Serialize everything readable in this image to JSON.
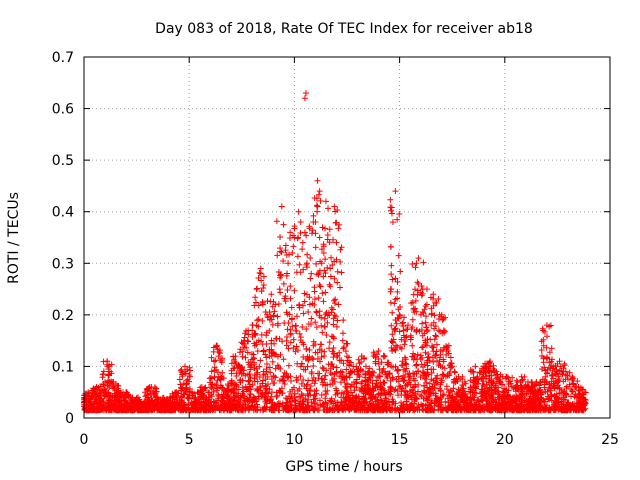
{
  "chart_data": {
    "type": "scatter",
    "title": "Day 083 of 2018, Rate Of TEC Index for receiver ab18",
    "xlabel": "GPS time / hours",
    "ylabel": "ROTI / TECUs",
    "xlim": [
      0,
      25
    ],
    "ylim": [
      0,
      0.7
    ],
    "x_ticks": [
      "0",
      "5",
      "10",
      "15",
      "20",
      "25"
    ],
    "y_ticks": [
      "0",
      "0.1",
      "0.2",
      "0.3",
      "0.4",
      "0.5",
      "0.6",
      "0.7"
    ],
    "grid": true,
    "marker": "+",
    "color": "#ff0000",
    "series": [
      {
        "x": [
          0.0,
          0.2,
          0.4,
          0.6,
          0.8,
          1.0,
          1.1,
          1.2,
          1.4,
          1.6,
          1.8,
          2.0,
          2.3,
          2.6,
          2.9,
          3.2,
          3.5,
          3.8,
          4.1,
          4.4,
          4.7,
          4.8,
          5.0,
          5.3,
          5.6,
          5.9,
          6.2,
          6.3,
          6.4,
          6.5,
          6.8,
          7.0,
          7.2,
          7.4,
          7.6,
          7.8,
          8.0,
          8.2,
          8.4,
          8.5,
          8.7,
          8.9,
          9.1,
          9.3,
          9.5,
          9.7,
          9.9,
          10.0,
          10.2,
          10.3,
          10.4,
          10.5,
          10.6,
          10.8,
          11.0,
          11.1,
          11.2,
          11.3,
          11.4,
          11.5,
          11.7,
          11.9,
          12.1,
          12.3,
          12.5,
          12.8,
          13.1,
          13.4,
          13.7,
          14.0,
          14.3,
          14.6,
          14.8,
          15.0,
          15.2,
          15.4,
          15.6,
          15.8,
          15.9,
          16.1,
          16.3,
          16.5,
          16.7,
          16.9,
          17.1,
          17.3,
          17.5,
          17.8,
          18.1,
          18.4,
          18.7,
          19.0,
          19.3,
          19.6,
          19.9,
          20.2,
          20.5,
          20.8,
          21.1,
          21.4,
          21.7,
          22.0,
          22.3,
          22.6,
          22.9,
          23.2,
          23.5,
          23.8,
          10.5,
          10.55,
          11.1,
          11.2,
          9.4,
          11.9,
          14.8,
          22.0,
          8.4,
          15.9,
          16.3,
          16.6,
          17.0,
          9.8,
          10.9,
          12.0,
          13.2,
          18.6,
          19.3,
          20.1,
          21.5,
          22.7,
          23.4,
          1.1,
          4.8,
          6.3
        ],
        "y": [
          0.03,
          0.05,
          0.04,
          0.06,
          0.05,
          0.07,
          0.11,
          0.06,
          0.07,
          0.05,
          0.04,
          0.05,
          0.04,
          0.03,
          0.05,
          0.06,
          0.04,
          0.03,
          0.04,
          0.05,
          0.03,
          0.09,
          0.05,
          0.04,
          0.06,
          0.05,
          0.08,
          0.14,
          0.12,
          0.06,
          0.05,
          0.07,
          0.12,
          0.1,
          0.15,
          0.17,
          0.18,
          0.25,
          0.28,
          0.22,
          0.2,
          0.24,
          0.22,
          0.25,
          0.26,
          0.3,
          0.32,
          0.35,
          0.4,
          0.38,
          0.34,
          0.36,
          0.3,
          0.28,
          0.38,
          0.41,
          0.35,
          0.3,
          0.32,
          0.42,
          0.29,
          0.27,
          0.22,
          0.15,
          0.12,
          0.1,
          0.08,
          0.1,
          0.09,
          0.13,
          0.12,
          0.1,
          0.23,
          0.2,
          0.16,
          0.18,
          0.14,
          0.3,
          0.26,
          0.25,
          0.22,
          0.18,
          0.16,
          0.2,
          0.17,
          0.13,
          0.1,
          0.08,
          0.07,
          0.09,
          0.08,
          0.1,
          0.11,
          0.09,
          0.08,
          0.07,
          0.06,
          0.08,
          0.07,
          0.06,
          0.05,
          0.07,
          0.1,
          0.11,
          0.09,
          0.08,
          0.06,
          0.05,
          0.62,
          0.63,
          0.46,
          0.44,
          0.41,
          0.41,
          0.44,
          0.18,
          0.29,
          0.31,
          0.25,
          0.24,
          0.2,
          0.36,
          0.38,
          0.34,
          0.12,
          0.1,
          0.09,
          0.08,
          0.07,
          0.09,
          0.06,
          0.11,
          0.1,
          0.14
        ]
      }
    ]
  }
}
